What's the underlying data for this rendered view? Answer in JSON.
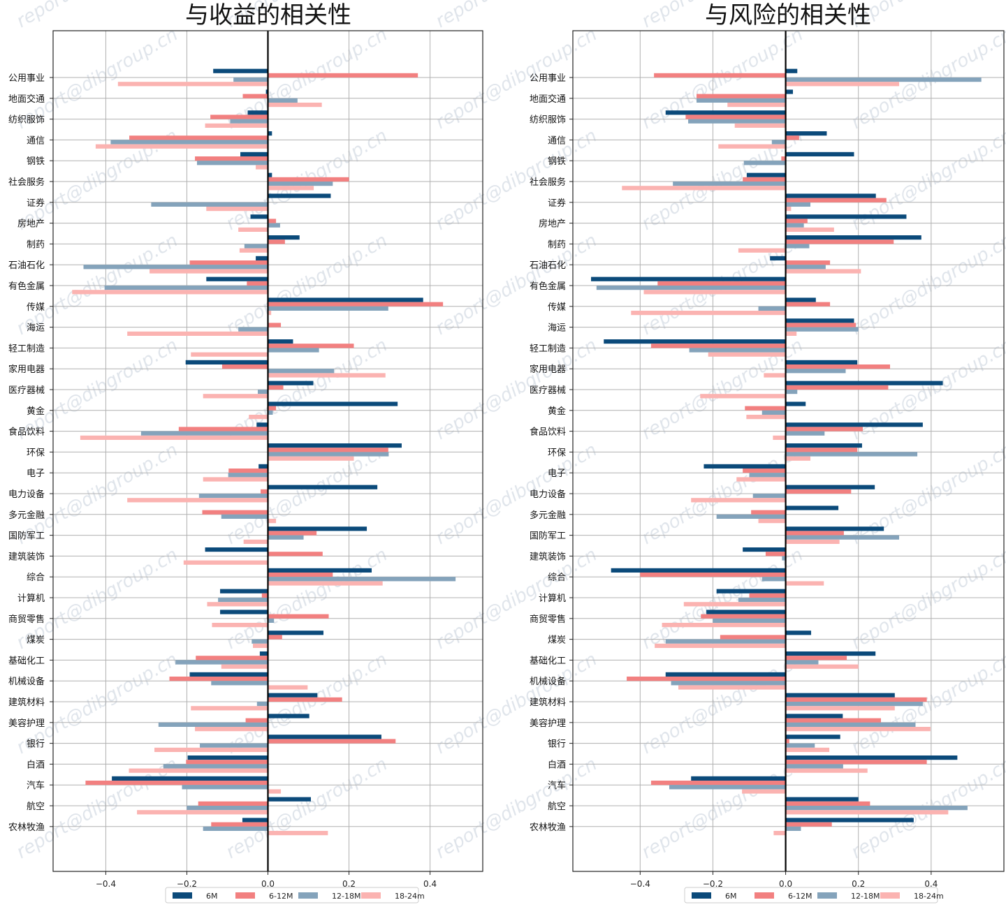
{
  "colors": {
    "6M": "#0b4a7a",
    "6-12M": "#f28080",
    "12-18M": "#84a3bb",
    "18-24m": "#fbb3b1",
    "grid": "#b0b0b0",
    "frame": "#222222",
    "zero_line": "#000000",
    "watermark": "#c8d0dc"
  },
  "watermark_text": "report@dibgroup.cn",
  "chart_data": [
    {
      "type": "bar",
      "orientation": "horizontal",
      "title": "与收益的相关性",
      "xlim": [
        -0.53,
        0.53
      ],
      "xticks": [
        -0.4,
        -0.2,
        0.0,
        0.2,
        0.4
      ],
      "xtick_labels": [
        "−0.4",
        "−0.2",
        "0.0",
        "0.2",
        "0.4"
      ],
      "grid": true,
      "legend_position": "bottom-center",
      "categories": [
        "公用事业",
        "地面交通",
        "纺织服饰",
        "通信",
        "钢铁",
        "社会服务",
        "证券",
        "房地产",
        "制药",
        "石油石化",
        "有色金属",
        "传媒",
        "海运",
        "轻工制造",
        "家用电器",
        "医疗器械",
        "黄金",
        "食品饮料",
        "环保",
        "电子",
        "电力设备",
        "多元金融",
        "国防军工",
        "建筑装饰",
        "综合",
        "计算机",
        "商贸零售",
        "煤炭",
        "基础化工",
        "机械设备",
        "建筑材料",
        "美容护理",
        "银行",
        "白酒",
        "汽车",
        "航空",
        "农林牧渔"
      ],
      "series": [
        {
          "name": "6M",
          "values": [
            -0.135,
            -0.005,
            -0.05,
            0.01,
            -0.068,
            0.01,
            0.155,
            -0.043,
            0.078,
            -0.03,
            -0.152,
            0.383,
            0.0,
            0.062,
            -0.203,
            0.112,
            0.32,
            -0.028,
            0.33,
            -0.023,
            0.27,
            0.0,
            0.244,
            -0.155,
            0.256,
            -0.118,
            -0.118,
            0.137,
            -0.02,
            -0.193,
            0.122,
            0.102,
            0.28,
            -0.198,
            -0.385,
            0.106,
            -0.063
          ]
        },
        {
          "name": "6-12M",
          "values": [
            0.37,
            -0.062,
            -0.142,
            -0.342,
            -0.18,
            0.2,
            0.0,
            0.02,
            0.042,
            -0.193,
            -0.052,
            0.432,
            0.032,
            0.212,
            -0.113,
            0.038,
            0.02,
            -0.22,
            0.297,
            -0.097,
            -0.018,
            -0.162,
            0.12,
            0.135,
            0.16,
            -0.015,
            0.15,
            0.035,
            -0.178,
            -0.243,
            0.183,
            -0.055,
            0.315,
            -0.202,
            -0.45,
            -0.172,
            -0.14
          ]
        },
        {
          "name": "12-18M",
          "values": [
            -0.085,
            0.073,
            -0.093,
            -0.388,
            -0.175,
            0.16,
            -0.288,
            0.03,
            -0.058,
            -0.455,
            -0.403,
            0.297,
            -0.073,
            0.126,
            0.163,
            -0.025,
            0.012,
            -0.313,
            0.298,
            -0.098,
            -0.17,
            -0.115,
            0.088,
            0.0,
            0.463,
            -0.123,
            0.015,
            -0.04,
            -0.228,
            -0.14,
            -0.027,
            -0.27,
            -0.168,
            -0.258,
            -0.212,
            -0.2,
            -0.16
          ]
        },
        {
          "name": "18-24m",
          "values": [
            -0.37,
            0.133,
            -0.155,
            -0.425,
            -0.03,
            0.113,
            -0.152,
            -0.073,
            -0.07,
            -0.292,
            -0.483,
            0.008,
            -0.347,
            -0.19,
            0.29,
            -0.16,
            -0.047,
            -0.463,
            0.212,
            -0.16,
            -0.347,
            0.02,
            -0.06,
            -0.208,
            0.283,
            -0.15,
            -0.138,
            -0.037,
            -0.115,
            0.098,
            -0.19,
            -0.18,
            -0.28,
            -0.343,
            0.032,
            -0.323,
            0.148
          ]
        }
      ],
      "legend": [
        "6M",
        "6-12M",
        "12-18M",
        "18-24m"
      ]
    },
    {
      "type": "bar",
      "orientation": "horizontal",
      "title": "与风险的相关性",
      "xlim": [
        -0.585,
        0.6
      ],
      "xticks": [
        -0.4,
        -0.2,
        0.0,
        0.2,
        0.4
      ],
      "xtick_labels": [
        "−0.4",
        "−0.2",
        "0.0",
        "0.2",
        "0.4"
      ],
      "grid": true,
      "legend_position": "bottom-center",
      "categories": [
        "公用事业",
        "地面交通",
        "纺织服饰",
        "通信",
        "钢铁",
        "社会服务",
        "证券",
        "房地产",
        "制药",
        "石油石化",
        "有色金属",
        "传媒",
        "海运",
        "轻工制造",
        "家用电器",
        "医疗器械",
        "黄金",
        "食品饮料",
        "环保",
        "电子",
        "电力设备",
        "多元金融",
        "国防军工",
        "建筑装饰",
        "综合",
        "计算机",
        "商贸零售",
        "煤炭",
        "基础化工",
        "机械设备",
        "建筑材料",
        "美容护理",
        "银行",
        "白酒",
        "汽车",
        "航空",
        "农林牧渔"
      ],
      "series": [
        {
          "name": "6M",
          "values": [
            0.032,
            0.02,
            -0.33,
            0.113,
            0.188,
            -0.107,
            0.248,
            0.332,
            0.373,
            -0.043,
            -0.535,
            0.083,
            0.188,
            -0.5,
            0.197,
            0.432,
            0.055,
            0.377,
            0.21,
            -0.225,
            0.245,
            0.145,
            0.27,
            -0.118,
            -0.48,
            -0.19,
            -0.218,
            0.07,
            0.247,
            -0.33,
            0.3,
            0.157,
            0.15,
            0.472,
            -0.26,
            0.2,
            0.352
          ]
        },
        {
          "name": "6-12M",
          "values": [
            -0.362,
            -0.245,
            -0.275,
            0.037,
            -0.012,
            -0.118,
            0.277,
            0.06,
            0.297,
            0.122,
            -0.352,
            0.122,
            0.193,
            -0.37,
            0.287,
            0.282,
            -0.112,
            0.212,
            0.197,
            -0.118,
            0.18,
            -0.095,
            0.16,
            -0.055,
            -0.4,
            -0.1,
            -0.233,
            -0.18,
            0.168,
            -0.437,
            0.388,
            0.262,
            0.01,
            0.388,
            -0.37,
            0.232,
            0.127
          ]
        },
        {
          "name": "12-18M",
          "values": [
            0.538,
            -0.245,
            -0.268,
            -0.038,
            -0.115,
            -0.31,
            0.068,
            0.05,
            0.065,
            0.11,
            -0.52,
            -0.075,
            0.2,
            -0.265,
            0.165,
            0.032,
            -0.065,
            0.107,
            0.362,
            -0.1,
            -0.09,
            -0.19,
            0.312,
            -0.01,
            -0.065,
            -0.13,
            -0.2,
            -0.33,
            0.09,
            -0.315,
            0.377,
            0.357,
            0.08,
            0.158,
            -0.32,
            0.5,
            0.042
          ]
        },
        {
          "name": "18-24m",
          "values": [
            0.312,
            -0.16,
            -0.14,
            -0.185,
            0.0,
            -0.45,
            0.015,
            0.133,
            -0.13,
            0.207,
            -0.39,
            -0.425,
            0.03,
            -0.213,
            -0.06,
            -0.235,
            -0.108,
            -0.035,
            0.068,
            -0.135,
            -0.26,
            -0.075,
            0.148,
            0.0,
            0.105,
            -0.28,
            -0.34,
            -0.36,
            0.2,
            -0.295,
            0.3,
            0.398,
            0.12,
            0.225,
            -0.12,
            0.447,
            -0.033
          ]
        }
      ],
      "legend": [
        "6M",
        "6-12M",
        "12-18M",
        "18-24m"
      ]
    }
  ]
}
